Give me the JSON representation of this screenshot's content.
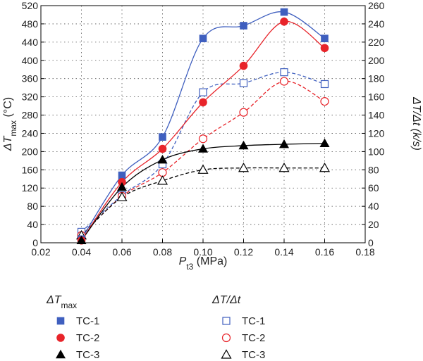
{
  "chart_data": {
    "type": "scatter",
    "x_label": {
      "main": "P",
      "sub": "t3",
      "unit": " (MPa)"
    },
    "y_left_label": {
      "main": "ΔT",
      "sub": "max",
      "unit": " (°C)"
    },
    "y_right_label": {
      "text": "ΔT/Δt (k/s)"
    },
    "xlim": [
      0.02,
      0.18
    ],
    "x_ticks": [
      0.02,
      0.04,
      0.06,
      0.08,
      0.1,
      0.12,
      0.14,
      0.16,
      0.18
    ],
    "x_tick_labels": [
      "0.02",
      "0.04",
      "0.06",
      "0.08",
      "0.10",
      "0.12",
      "0.14",
      "0.16",
      "0.18"
    ],
    "ylim_left": [
      0,
      520
    ],
    "y_left_ticks": [
      0,
      40,
      80,
      120,
      160,
      200,
      240,
      280,
      320,
      360,
      400,
      440,
      480,
      520
    ],
    "y_left_tick_labels": [
      "0",
      "40",
      "80",
      "120",
      "160",
      "200",
      "240",
      "280",
      "320",
      "360",
      "400",
      "440",
      "480",
      "520"
    ],
    "ylim_right": [
      0,
      260
    ],
    "y_right_ticks": [
      0,
      20,
      40,
      60,
      80,
      100,
      120,
      140,
      160,
      180,
      200,
      220,
      240,
      260
    ],
    "y_right_tick_labels": [
      "0",
      "20",
      "40",
      "60",
      "80",
      "100",
      "120",
      "140",
      "160",
      "180",
      "200",
      "220",
      "240",
      "260"
    ],
    "grid": true,
    "legend": {
      "placement": "bottom",
      "groups": [
        {
          "title_main": "ΔT",
          "title_sub": "max",
          "entries": [
            "TC-1",
            "TC-2",
            "TC-3"
          ]
        },
        {
          "title": "ΔT/Δt",
          "entries": [
            "TC-1",
            "TC-2",
            "TC-3"
          ]
        }
      ]
    },
    "x": [
      0.04,
      0.06,
      0.08,
      0.1,
      0.12,
      0.14,
      0.16
    ],
    "series": [
      {
        "name": "TC-1",
        "group": "ΔTmax",
        "axis": "left",
        "marker": "square",
        "filled": true,
        "color": "#3f5fbf",
        "line": "solid",
        "values": [
          8,
          148,
          232,
          448,
          476,
          506,
          448
        ]
      },
      {
        "name": "TC-2",
        "group": "ΔTmax",
        "axis": "left",
        "marker": "circle",
        "filled": true,
        "color": "#e8242a",
        "line": "solid",
        "values": [
          5,
          133,
          206,
          308,
          388,
          485,
          427
        ]
      },
      {
        "name": "TC-3",
        "group": "ΔTmax",
        "axis": "left",
        "marker": "triangle",
        "filled": true,
        "color": "#000000",
        "line": "solid",
        "values": [
          5,
          122,
          182,
          206,
          213,
          216,
          218
        ]
      },
      {
        "name": "TC-1",
        "group": "ΔT/Δt",
        "axis": "right",
        "marker": "square",
        "filled": false,
        "color": "#3f5fbf",
        "line": "dashed",
        "values": [
          12,
          52,
          86,
          165,
          175,
          187,
          174
        ]
      },
      {
        "name": "TC-2",
        "group": "ΔT/Δt",
        "axis": "right",
        "marker": "circle",
        "filled": false,
        "color": "#e8242a",
        "line": "dashed",
        "values": [
          8,
          51,
          77,
          114,
          143,
          177,
          155
        ]
      },
      {
        "name": "TC-3",
        "group": "ΔT/Δt",
        "axis": "right",
        "marker": "triangle",
        "filled": false,
        "color": "#000000",
        "line": "dashed",
        "values": [
          8,
          50,
          68,
          80,
          82,
          82,
          82
        ]
      }
    ]
  }
}
